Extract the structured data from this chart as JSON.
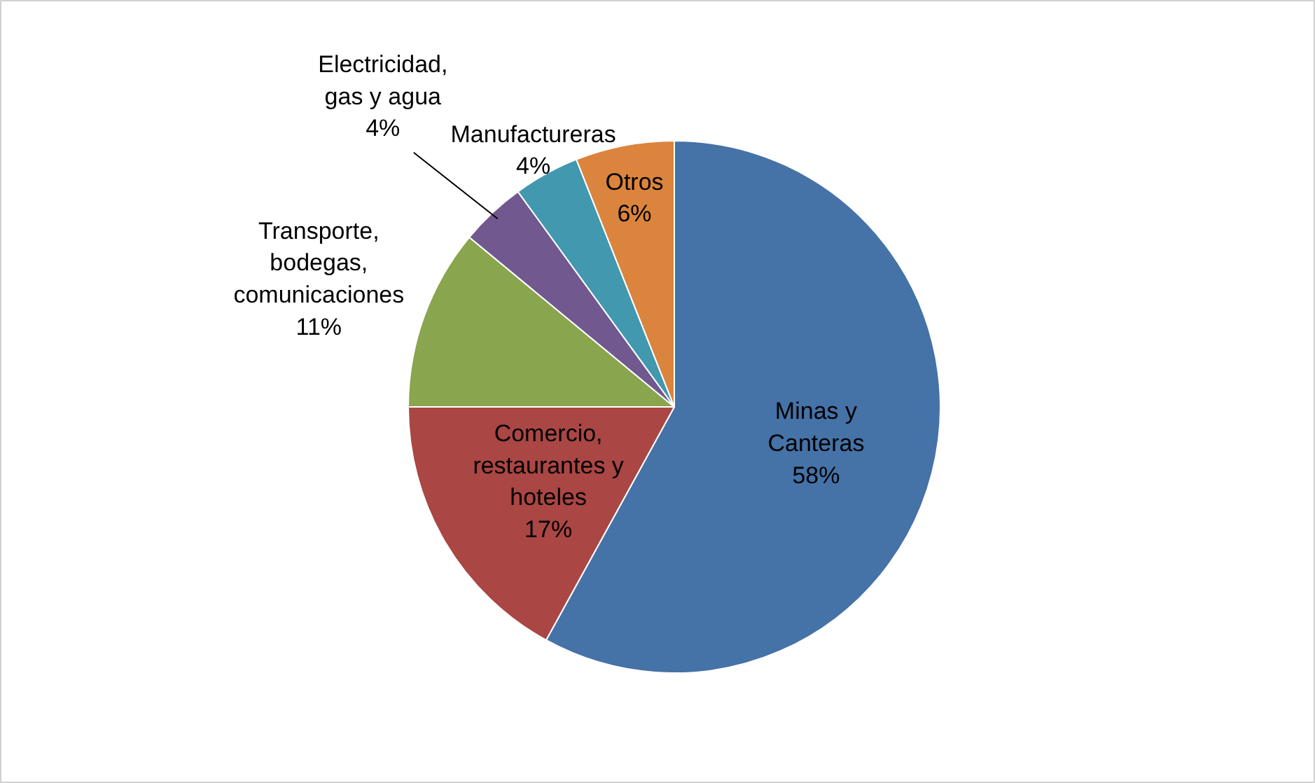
{
  "chart_data": {
    "type": "pie",
    "categories": [
      "Minas y Canteras",
      "Comercio, restaurantes y hoteles",
      "Transporte, bodegas, comunicaciones",
      "Electricidad, gas y agua",
      "Manufactureras",
      "Otros"
    ],
    "values": [
      58,
      17,
      11,
      4,
      4,
      6
    ],
    "value_labels": [
      "58%",
      "17%",
      "11%",
      "4%",
      "4%",
      "6%"
    ],
    "colors": [
      "#4572a7",
      "#aa4643",
      "#89a54e",
      "#71588f",
      "#4198af",
      "#db843d"
    ]
  }
}
